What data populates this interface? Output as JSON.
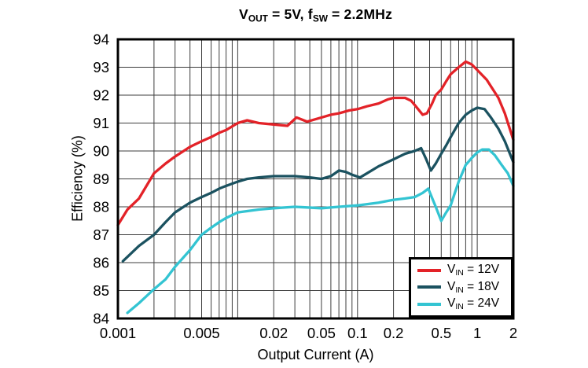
{
  "chart_title": {
    "pre": "V",
    "pre_sub": "OUT",
    "mid": " = 5V, f",
    "mid_sub": "SW",
    "post": " = 2.2MHz",
    "plain": "VOUT = 5V, fSW = 2.2MHz"
  },
  "legend": {
    "items": [
      {
        "pre": "V",
        "sub": "IN",
        "post": " = 12V",
        "color": "#e32228"
      },
      {
        "pre": "V",
        "sub": "IN",
        "post": " = 18V",
        "color": "#1b5260"
      },
      {
        "pre": "V",
        "sub": "IN",
        "post": " = 24V",
        "color": "#33c4d2"
      }
    ]
  },
  "chart_data": {
    "type": "line",
    "title": "VOUT = 5V, fSW = 2.2MHz",
    "xlabel": "Output Current (A)",
    "ylabel": "Efficiency (%)",
    "x_scale": "log",
    "xlim": [
      0.001,
      2
    ],
    "ylim": [
      84,
      94
    ],
    "grid": "full grid: horizontal every 1%, vertical log minor divisions",
    "legend_position": "inside bottom-right",
    "colors": {
      "grid": "#3d3d3d",
      "frame": "#000000",
      "text": "#000000",
      "background": "#ffffff"
    },
    "x_ticks": [
      {
        "v": 0.001,
        "label": "0.001"
      },
      {
        "v": 0.005,
        "label": "0.005"
      },
      {
        "v": 0.02,
        "label": "0.02"
      },
      {
        "v": 0.05,
        "label": "0.05"
      },
      {
        "v": 0.1,
        "label": "0.1"
      },
      {
        "v": 0.2,
        "label": "0.2"
      },
      {
        "v": 0.5,
        "label": "0.5"
      },
      {
        "v": 1,
        "label": "1"
      },
      {
        "v": 2,
        "label": "2"
      }
    ],
    "y_ticks": [
      {
        "v": 84,
        "label": "84"
      },
      {
        "v": 85,
        "label": "85"
      },
      {
        "v": 86,
        "label": "86"
      },
      {
        "v": 87,
        "label": "87"
      },
      {
        "v": 88,
        "label": "88"
      },
      {
        "v": 89,
        "label": "89"
      },
      {
        "v": 90,
        "label": "90"
      },
      {
        "v": 91,
        "label": "91"
      },
      {
        "v": 92,
        "label": "92"
      },
      {
        "v": 93,
        "label": "93"
      },
      {
        "v": 94,
        "label": "94"
      }
    ],
    "series": [
      {
        "name": "VIN = 12V",
        "color": "#e32228",
        "points": [
          [
            0.001,
            87.35
          ],
          [
            0.0012,
            87.9
          ],
          [
            0.0015,
            88.3
          ],
          [
            0.002,
            89.2
          ],
          [
            0.0025,
            89.55
          ],
          [
            0.003,
            89.8
          ],
          [
            0.004,
            90.15
          ],
          [
            0.005,
            90.35
          ],
          [
            0.006,
            90.5
          ],
          [
            0.007,
            90.65
          ],
          [
            0.008,
            90.75
          ],
          [
            0.01,
            91.0
          ],
          [
            0.012,
            91.1
          ],
          [
            0.015,
            91.0
          ],
          [
            0.02,
            90.95
          ],
          [
            0.026,
            90.9
          ],
          [
            0.031,
            91.2
          ],
          [
            0.038,
            91.05
          ],
          [
            0.05,
            91.2
          ],
          [
            0.06,
            91.3
          ],
          [
            0.07,
            91.35
          ],
          [
            0.085,
            91.45
          ],
          [
            0.1,
            91.5
          ],
          [
            0.12,
            91.6
          ],
          [
            0.15,
            91.7
          ],
          [
            0.18,
            91.85
          ],
          [
            0.2,
            91.9
          ],
          [
            0.25,
            91.9
          ],
          [
            0.28,
            91.8
          ],
          [
            0.3,
            91.65
          ],
          [
            0.35,
            91.3
          ],
          [
            0.38,
            91.35
          ],
          [
            0.42,
            91.7
          ],
          [
            0.45,
            92.0
          ],
          [
            0.5,
            92.2
          ],
          [
            0.55,
            92.5
          ],
          [
            0.6,
            92.75
          ],
          [
            0.7,
            93.0
          ],
          [
            0.8,
            93.2
          ],
          [
            0.9,
            93.1
          ],
          [
            1.0,
            92.9
          ],
          [
            1.2,
            92.55
          ],
          [
            1.5,
            91.9
          ],
          [
            1.7,
            91.35
          ],
          [
            2.0,
            90.4
          ]
        ]
      },
      {
        "name": "VIN = 18V",
        "color": "#1b5260",
        "points": [
          [
            0.0011,
            86.05
          ],
          [
            0.0015,
            86.6
          ],
          [
            0.002,
            87.0
          ],
          [
            0.0025,
            87.45
          ],
          [
            0.003,
            87.8
          ],
          [
            0.004,
            88.15
          ],
          [
            0.005,
            88.35
          ],
          [
            0.006,
            88.5
          ],
          [
            0.007,
            88.65
          ],
          [
            0.008,
            88.75
          ],
          [
            0.01,
            88.9
          ],
          [
            0.012,
            89.0
          ],
          [
            0.015,
            89.05
          ],
          [
            0.02,
            89.1
          ],
          [
            0.03,
            89.1
          ],
          [
            0.04,
            89.05
          ],
          [
            0.05,
            89.0
          ],
          [
            0.06,
            89.1
          ],
          [
            0.065,
            89.2
          ],
          [
            0.07,
            89.3
          ],
          [
            0.08,
            89.25
          ],
          [
            0.09,
            89.15
          ],
          [
            0.105,
            89.05
          ],
          [
            0.12,
            89.2
          ],
          [
            0.15,
            89.45
          ],
          [
            0.2,
            89.7
          ],
          [
            0.25,
            89.9
          ],
          [
            0.3,
            90.0
          ],
          [
            0.34,
            90.1
          ],
          [
            0.375,
            89.7
          ],
          [
            0.41,
            89.3
          ],
          [
            0.45,
            89.55
          ],
          [
            0.5,
            89.9
          ],
          [
            0.55,
            90.2
          ],
          [
            0.6,
            90.5
          ],
          [
            0.7,
            91.0
          ],
          [
            0.8,
            91.3
          ],
          [
            0.9,
            91.45
          ],
          [
            1.0,
            91.55
          ],
          [
            1.15,
            91.5
          ],
          [
            1.3,
            91.2
          ],
          [
            1.5,
            90.8
          ],
          [
            1.7,
            90.35
          ],
          [
            2.0,
            89.6
          ]
        ]
      },
      {
        "name": "VIN = 24V",
        "color": "#33c4d2",
        "points": [
          [
            0.0012,
            84.2
          ],
          [
            0.0015,
            84.55
          ],
          [
            0.002,
            85.05
          ],
          [
            0.0025,
            85.4
          ],
          [
            0.003,
            85.85
          ],
          [
            0.004,
            86.45
          ],
          [
            0.005,
            87.0
          ],
          [
            0.006,
            87.25
          ],
          [
            0.007,
            87.45
          ],
          [
            0.008,
            87.6
          ],
          [
            0.01,
            87.8
          ],
          [
            0.015,
            87.9
          ],
          [
            0.02,
            87.95
          ],
          [
            0.03,
            88.0
          ],
          [
            0.05,
            87.95
          ],
          [
            0.07,
            88.0
          ],
          [
            0.1,
            88.05
          ],
          [
            0.15,
            88.15
          ],
          [
            0.2,
            88.25
          ],
          [
            0.25,
            88.3
          ],
          [
            0.3,
            88.35
          ],
          [
            0.35,
            88.5
          ],
          [
            0.39,
            88.65
          ],
          [
            0.45,
            88.0
          ],
          [
            0.5,
            87.5
          ],
          [
            0.55,
            87.8
          ],
          [
            0.6,
            88.05
          ],
          [
            0.65,
            88.5
          ],
          [
            0.7,
            88.9
          ],
          [
            0.8,
            89.5
          ],
          [
            0.9,
            89.75
          ],
          [
            1.0,
            89.95
          ],
          [
            1.1,
            90.05
          ],
          [
            1.25,
            90.05
          ],
          [
            1.4,
            89.85
          ],
          [
            1.6,
            89.5
          ],
          [
            1.8,
            89.2
          ],
          [
            2.0,
            88.75
          ]
        ]
      }
    ]
  }
}
